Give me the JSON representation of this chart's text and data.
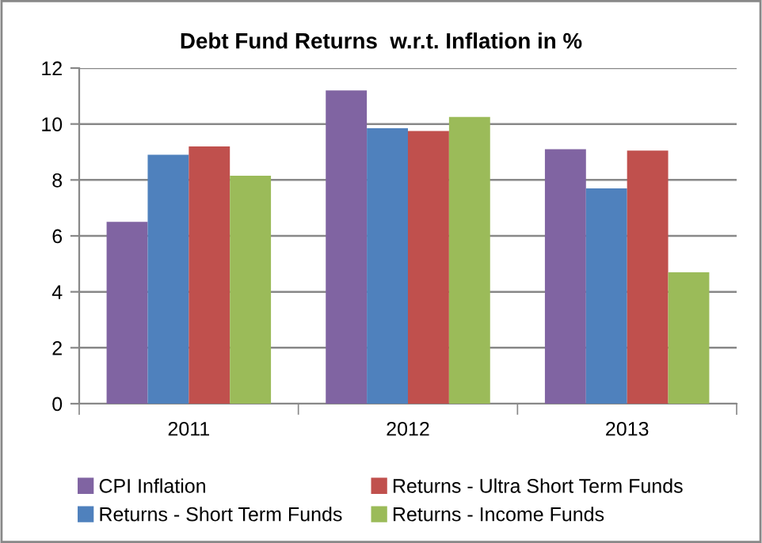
{
  "chart_data": {
    "type": "bar",
    "title": "Debt Fund Returns  w.r.t. Inflation in %",
    "categories": [
      "2011",
      "2012",
      "2013"
    ],
    "series": [
      {
        "name": "CPI Inflation",
        "color": "#8064a2",
        "values": [
          6.5,
          11.2,
          9.1
        ]
      },
      {
        "name": "Returns - Short Term Funds",
        "color": "#4f81bd",
        "values": [
          8.9,
          9.85,
          7.7
        ]
      },
      {
        "name": "Returns - Ultra Short Term Funds",
        "color": "#c0504d",
        "values": [
          9.2,
          9.75,
          9.05
        ]
      },
      {
        "name": "Returns - Income Funds",
        "color": "#9bbb59",
        "values": [
          8.15,
          10.25,
          4.7
        ]
      }
    ],
    "ylim": [
      0,
      12
    ],
    "yticks": [
      0,
      2,
      4,
      6,
      8,
      10,
      12
    ],
    "grid": "y",
    "legend": "bottom"
  }
}
